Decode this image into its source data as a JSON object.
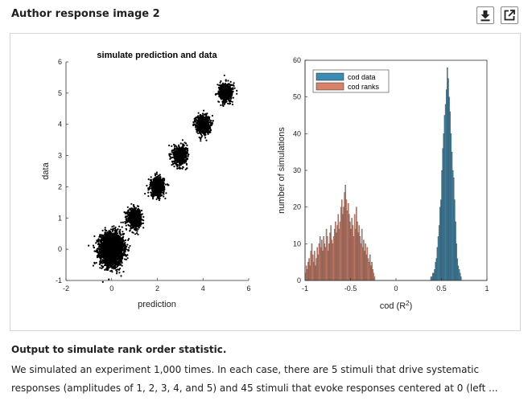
{
  "header": {
    "title": "Author response image 2",
    "download_icon": "download-icon",
    "external_icon": "external-link-icon"
  },
  "caption": {
    "title": "Output to simulate rank order statistic.",
    "body": "We simulated an experiment 1,000 times. In each case, there are 5 stimuli that drive systematic responses (amplitudes of 1, 2, 3, 4, and 5) and 45 stimuli that evoke responses centered at 0 (left ..."
  },
  "chart_data": [
    {
      "type": "scatter",
      "title": "simulate prediction and data",
      "xlabel": "prediction",
      "ylabel": "data",
      "xlim": [
        -2,
        6
      ],
      "ylim": [
        -1,
        6
      ],
      "xticks": [
        -2,
        0,
        2,
        4,
        6
      ],
      "yticks": [
        -1,
        0,
        1,
        2,
        3,
        4,
        5,
        6
      ],
      "point_color": "#000000",
      "clusters": [
        {
          "center": [
            0,
            0
          ],
          "spread": 0.25,
          "points": 3000
        },
        {
          "center": [
            1,
            1
          ],
          "spread": 0.15,
          "points": 650
        },
        {
          "center": [
            2,
            2
          ],
          "spread": 0.15,
          "points": 650
        },
        {
          "center": [
            3,
            3
          ],
          "spread": 0.15,
          "points": 650
        },
        {
          "center": [
            4,
            4
          ],
          "spread": 0.15,
          "points": 650
        },
        {
          "center": [
            5,
            5
          ],
          "spread": 0.15,
          "points": 650
        }
      ]
    },
    {
      "type": "bar",
      "subtype": "histogram",
      "xlabel": "cod (R",
      "xlabel_sup": "2",
      "xlabel_end": ")",
      "ylabel": "number of simulations",
      "xlim": [
        -1,
        1
      ],
      "ylim": [
        0,
        60
      ],
      "xticks": [
        -1,
        -0.5,
        0,
        0.5,
        1
      ],
      "xtick_labels": [
        "-1",
        "-0.5",
        "0",
        "0.5",
        "1"
      ],
      "yticks": [
        0,
        10,
        20,
        30,
        40,
        50,
        60
      ],
      "legend_position": "top-left",
      "series": [
        {
          "name": "cod data",
          "color": "#3b8bb3",
          "bin_start": 0.38,
          "bin_width": 0.01,
          "values": [
            1,
            1,
            2,
            2,
            3,
            5,
            6,
            9,
            12,
            15,
            20,
            22,
            30,
            36,
            40,
            45,
            48,
            52,
            58,
            55,
            50,
            46,
            40,
            35,
            30,
            28,
            22,
            16,
            10,
            6,
            4,
            3,
            2,
            1
          ]
        },
        {
          "name": "cod ranks",
          "color": "#d9826a",
          "bin_start": -1.0,
          "bin_width": 0.01,
          "values": [
            2,
            4,
            3,
            5,
            6,
            4,
            8,
            10,
            7,
            5,
            8,
            4,
            6,
            9,
            7,
            10,
            12,
            9,
            11,
            8,
            12,
            10,
            9,
            14,
            12,
            8,
            10,
            13,
            15,
            11,
            10,
            12,
            14,
            16,
            13,
            15,
            18,
            14,
            16,
            20,
            22,
            18,
            20,
            24,
            26,
            22,
            19,
            21,
            18,
            16,
            14,
            17,
            15,
            12,
            18,
            14,
            20,
            16,
            13,
            15,
            12,
            10,
            14,
            9,
            11,
            8,
            10,
            7,
            9,
            6,
            5,
            7,
            4,
            5,
            3,
            2,
            1
          ]
        }
      ]
    }
  ]
}
